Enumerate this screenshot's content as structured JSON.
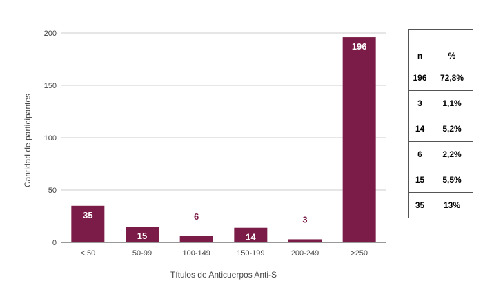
{
  "chart_data": {
    "type": "bar",
    "categories": [
      "< 50",
      "50-99",
      "100-149",
      "150-199",
      "200-249",
      ">250"
    ],
    "values": [
      35,
      15,
      6,
      14,
      3,
      196
    ],
    "data_labels": [
      "35",
      "15",
      "6",
      "14",
      "3",
      "196"
    ],
    "xlabel": "Títulos de Anticuerpos Anti-S",
    "ylabel": "Cantidad de participantes",
    "ylim": [
      0,
      200
    ],
    "yticks": [
      0,
      50,
      100,
      150,
      200
    ],
    "ytick_labels": [
      "0",
      "50",
      "100",
      "150",
      "200"
    ],
    "grid": true,
    "bar_color": "#7a1c47"
  },
  "table": {
    "headers": {
      "n": "n",
      "pct": "%"
    },
    "rows": [
      {
        "n": "196",
        "pct": "72,8%"
      },
      {
        "n": "3",
        "pct": "1,1%"
      },
      {
        "n": "14",
        "pct": "5,2%"
      },
      {
        "n": "6",
        "pct": "2,2%"
      },
      {
        "n": "15",
        "pct": "5,5%"
      },
      {
        "n": "35",
        "pct": "13%"
      }
    ]
  }
}
